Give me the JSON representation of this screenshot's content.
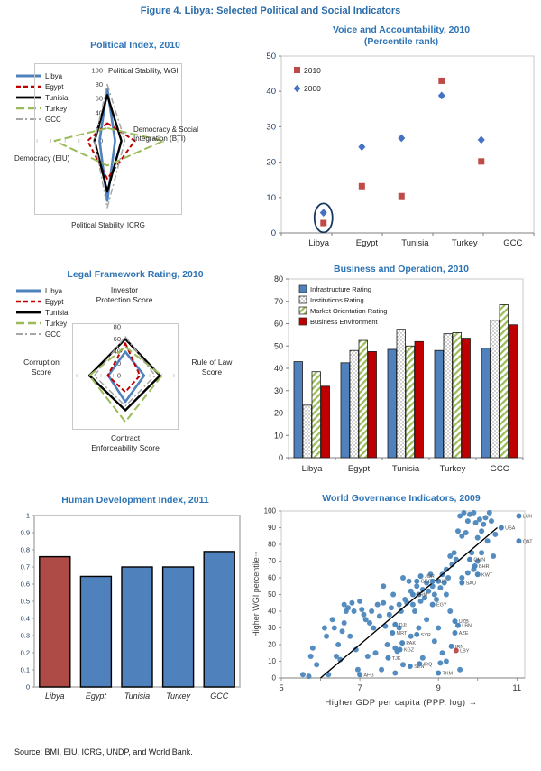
{
  "figure": {
    "title": "Figure 4. Libya: Selected Political and Social Indicators",
    "source": "Source: BMI, EIU, ICRG, UNDP, and World Bank.",
    "accent_color": "#2E74B5"
  },
  "chart_data": [
    {
      "id": "political-index",
      "type": "radar",
      "title": "Political Index, 2010",
      "max": 100,
      "tick_step": 20,
      "axis_labels": {
        "top": "Political Stability, WGI",
        "right": "Democracy & Social Integration (BTI)",
        "bottom": "Political Stability, ICRG",
        "left": "Democracy (EIU)"
      },
      "series": [
        {
          "name": "Libya",
          "color": "#4F81BD",
          "dash": "",
          "width": 2.6,
          "values": [
            74,
            11,
            85,
            11
          ]
        },
        {
          "name": "Egypt",
          "color": "#C00000",
          "dash": "5,3",
          "width": 2,
          "values": [
            25,
            39,
            54,
            28
          ]
        },
        {
          "name": "Tunisia",
          "color": "#000000",
          "dash": "",
          "width": 2.4,
          "values": [
            65,
            20,
            72,
            18
          ]
        },
        {
          "name": "Turkey",
          "color": "#9BBB59",
          "dash": "9,4",
          "width": 2,
          "values": [
            18,
            80,
            35,
            75
          ]
        },
        {
          "name": "GCC",
          "color": "#A6A6A6",
          "dash": "7,3,2,3",
          "width": 1.5,
          "values": [
            80,
            25,
            95,
            18
          ]
        }
      ]
    },
    {
      "id": "voice-accountability",
      "type": "scatter",
      "title": "Voice and Accountability, 2010",
      "subtitle": "(Percentile rank)",
      "categories": [
        "Libya",
        "Egypt",
        "Tunisia",
        "Turkey",
        "GCC"
      ],
      "ylim": [
        0,
        50
      ],
      "ytick_step": 10,
      "series": [
        {
          "name": "2010",
          "marker": "square",
          "color": "#BE4B48",
          "values": [
            2.8,
            13.2,
            10.4,
            43,
            20.2
          ]
        },
        {
          "name": "2000",
          "marker": "diamond",
          "color": "#4472C4",
          "values": [
            5.7,
            24.3,
            26.8,
            38.8,
            26.3
          ]
        }
      ],
      "highlight": {
        "category": "Libya",
        "shape": "ellipse",
        "color": "#17375E"
      }
    },
    {
      "id": "legal-framework",
      "type": "radar",
      "title": "Legal Framework Rating, 2010",
      "max": 80,
      "tick_step": 20,
      "axis_labels": {
        "top": "Investor Protection Score",
        "right": "Rule of Law Score",
        "bottom": "Contract Enforceability Score",
        "left": "Corruption Score"
      },
      "series": [
        {
          "name": "Libya",
          "color": "#4F81BD",
          "dash": "",
          "width": 2.6,
          "values": [
            39,
            31,
            43,
            28
          ]
        },
        {
          "name": "Egypt",
          "color": "#C00000",
          "dash": "5,3",
          "width": 2,
          "values": [
            53,
            24,
            27,
            29
          ]
        },
        {
          "name": "Tunisia",
          "color": "#000000",
          "dash": "",
          "width": 2.4,
          "values": [
            60,
            57,
            57,
            59
          ]
        },
        {
          "name": "Turkey",
          "color": "#9BBB59",
          "dash": "9,4",
          "width": 2,
          "values": [
            47,
            60,
            76,
            59
          ]
        },
        {
          "name": "GCC",
          "color": "#A6A6A6",
          "dash": "7,3,2,3",
          "width": 1.5,
          "values": [
            64,
            49,
            50,
            51
          ]
        }
      ]
    },
    {
      "id": "business-operation",
      "type": "bar",
      "title": "Business and Operation, 2010",
      "categories": [
        "Libya",
        "Egypt",
        "Tunisia",
        "Turkey",
        "GCC"
      ],
      "ylim": [
        0,
        80
      ],
      "ytick_step": 10,
      "series": [
        {
          "name": "Infrastructure Rating",
          "fill": "#4F81BD",
          "values": [
            43,
            42.5,
            48.5,
            48,
            49
          ]
        },
        {
          "name": "Institutions Rating",
          "fill": "dots",
          "values": [
            23.5,
            48,
            57.5,
            55.5,
            61.5
          ]
        },
        {
          "name": "Market Orientation Rating",
          "fill": "hatch",
          "values": [
            38.5,
            52.5,
            50,
            56,
            68.5
          ]
        },
        {
          "name": "Business Environment",
          "fill": "#C00000",
          "values": [
            32,
            47.5,
            52,
            53.5,
            59.5
          ]
        }
      ]
    },
    {
      "id": "human-development-index",
      "type": "bar",
      "title": "Human Development Index, 2011",
      "categories": [
        "Libya",
        "Egypt",
        "Tunisia",
        "Turkey",
        "GCC"
      ],
      "ylim": [
        0,
        1
      ],
      "ytick_step": 0.1,
      "values": [
        0.76,
        0.645,
        0.7,
        0.7,
        0.79
      ],
      "bar_colors": [
        "#AF4B47",
        "#4F81BD",
        "#4F81BD",
        "#4F81BD",
        "#4F81BD"
      ]
    },
    {
      "id": "world-governance",
      "type": "scatter",
      "title": "World Governance Indicators, 2009",
      "xlabel": "Higher GDP per capita (PPP, log) →",
      "ylabel": "Higher WGI percentile",
      "ylabel_arrow": "↑",
      "xlim": [
        5,
        11.2
      ],
      "xticks": [
        5,
        7,
        9,
        11
      ],
      "ylim": [
        0,
        100
      ],
      "ytick_step": 10,
      "point_color": "#4C87BD",
      "trendline": {
        "x1": 6,
        "y1": 0,
        "x2": 10.5,
        "y2": 90
      },
      "labeled_points": [
        {
          "label": "LUX",
          "x": 11.05,
          "y": 97
        },
        {
          "label": "USA",
          "x": 10.6,
          "y": 90
        },
        {
          "label": "QAT",
          "x": 11.05,
          "y": 82
        },
        {
          "label": "OMN",
          "x": 9.8,
          "y": 71
        },
        {
          "label": "BHR",
          "x": 9.93,
          "y": 67
        },
        {
          "label": "KWT",
          "x": 10.0,
          "y": 62
        },
        {
          "label": "SAU",
          "x": 9.6,
          "y": 57
        },
        {
          "label": "JOR",
          "x": 8.55,
          "y": 61
        },
        {
          "label": "GEO",
          "x": 8.45,
          "y": 58
        },
        {
          "label": "TUN",
          "x": 8.85,
          "y": 58
        },
        {
          "label": "ARM",
          "x": 8.35,
          "y": 50
        },
        {
          "label": "EGY",
          "x": 8.85,
          "y": 44
        },
        {
          "label": "UZB",
          "x": 9.42,
          "y": 34
        },
        {
          "label": "LBN",
          "x": 9.5,
          "y": 31.5
        },
        {
          "label": "AZE",
          "x": 9.42,
          "y": 27
        },
        {
          "label": "DJI",
          "x": 7.9,
          "y": 32
        },
        {
          "label": "MRT",
          "x": 7.83,
          "y": 27
        },
        {
          "label": "SYR",
          "x": 8.45,
          "y": 26
        },
        {
          "label": "PAK",
          "x": 8.08,
          "y": 21
        },
        {
          "label": "KGZ",
          "x": 8.02,
          "y": 17
        },
        {
          "label": "IRN",
          "x": 9.33,
          "y": 19
        },
        {
          "label": "LBY",
          "x": 9.45,
          "y": 16.5,
          "color": "#C0504D"
        },
        {
          "label": "TJK",
          "x": 7.72,
          "y": 12
        },
        {
          "label": "SEN",
          "x": 8.28,
          "y": 7
        },
        {
          "label": "IRQ",
          "x": 8.52,
          "y": 8.5
        },
        {
          "label": "TKM",
          "x": 9.0,
          "y": 3
        },
        {
          "label": "AFG",
          "x": 7.0,
          "y": 2
        }
      ],
      "points": [
        [
          5.55,
          2
        ],
        [
          5.7,
          1
        ],
        [
          5.75,
          13
        ],
        [
          5.8,
          18
        ],
        [
          5.9,
          8
        ],
        [
          6.1,
          30
        ],
        [
          6.15,
          25
        ],
        [
          6.2,
          2
        ],
        [
          6.3,
          35
        ],
        [
          6.35,
          30
        ],
        [
          6.4,
          13
        ],
        [
          6.45,
          20
        ],
        [
          6.5,
          11
        ],
        [
          6.55,
          28
        ],
        [
          6.6,
          44
        ],
        [
          6.6,
          33
        ],
        [
          6.65,
          40
        ],
        [
          6.7,
          42
        ],
        [
          6.75,
          25
        ],
        [
          6.8,
          45
        ],
        [
          6.85,
          40
        ],
        [
          6.9,
          17
        ],
        [
          6.95,
          5
        ],
        [
          7.0,
          46
        ],
        [
          7.05,
          41
        ],
        [
          7.1,
          38
        ],
        [
          7.15,
          35
        ],
        [
          7.2,
          13
        ],
        [
          7.25,
          33
        ],
        [
          7.3,
          40
        ],
        [
          7.35,
          30
        ],
        [
          7.4,
          15
        ],
        [
          7.45,
          44
        ],
        [
          7.5,
          37
        ],
        [
          7.55,
          5
        ],
        [
          7.6,
          55
        ],
        [
          7.6,
          45
        ],
        [
          7.65,
          31
        ],
        [
          7.7,
          20
        ],
        [
          7.75,
          38
        ],
        [
          7.8,
          42
        ],
        [
          7.85,
          50
        ],
        [
          7.9,
          18
        ],
        [
          7.95,
          16
        ],
        [
          7.9,
          3
        ],
        [
          8.0,
          44
        ],
        [
          8.0,
          30
        ],
        [
          8.05,
          40
        ],
        [
          8.1,
          60
        ],
        [
          8.1,
          8
        ],
        [
          8.15,
          47
        ],
        [
          8.2,
          45
        ],
        [
          8.25,
          58
        ],
        [
          8.3,
          52
        ],
        [
          8.3,
          25
        ],
        [
          8.35,
          44
        ],
        [
          8.4,
          40
        ],
        [
          8.45,
          55
        ],
        [
          8.5,
          50
        ],
        [
          8.5,
          30
        ],
        [
          8.55,
          46
        ],
        [
          8.6,
          53
        ],
        [
          8.6,
          12
        ],
        [
          8.65,
          48
        ],
        [
          8.7,
          57
        ],
        [
          8.7,
          35
        ],
        [
          8.75,
          52
        ],
        [
          8.8,
          62
        ],
        [
          8.85,
          55
        ],
        [
          8.9,
          50
        ],
        [
          8.9,
          22
        ],
        [
          8.95,
          47
        ],
        [
          9.0,
          58
        ],
        [
          9.0,
          30
        ],
        [
          9.05,
          54
        ],
        [
          9.05,
          9
        ],
        [
          9.1,
          62
        ],
        [
          9.1,
          15
        ],
        [
          9.15,
          57
        ],
        [
          9.2,
          65
        ],
        [
          9.2,
          50
        ],
        [
          9.2,
          10
        ],
        [
          9.25,
          60
        ],
        [
          9.3,
          73
        ],
        [
          9.3,
          40
        ],
        [
          9.35,
          68
        ],
        [
          9.4,
          75
        ],
        [
          9.45,
          71
        ],
        [
          9.5,
          88
        ],
        [
          9.55,
          97
        ],
        [
          9.55,
          5
        ],
        [
          9.6,
          85
        ],
        [
          9.6,
          60
        ],
        [
          9.65,
          99
        ],
        [
          9.7,
          87
        ],
        [
          9.75,
          94
        ],
        [
          9.75,
          63
        ],
        [
          9.8,
          98
        ],
        [
          9.85,
          75
        ],
        [
          9.9,
          99
        ],
        [
          9.9,
          65
        ],
        [
          9.95,
          93
        ],
        [
          10.0,
          84
        ],
        [
          10.0,
          70
        ],
        [
          10.05,
          95
        ],
        [
          10.1,
          88
        ],
        [
          10.1,
          75
        ],
        [
          10.15,
          92
        ],
        [
          10.2,
          96
        ],
        [
          10.25,
          82
        ],
        [
          10.3,
          99
        ],
        [
          10.35,
          94
        ],
        [
          10.4,
          73
        ],
        [
          10.45,
          86
        ]
      ]
    }
  ]
}
